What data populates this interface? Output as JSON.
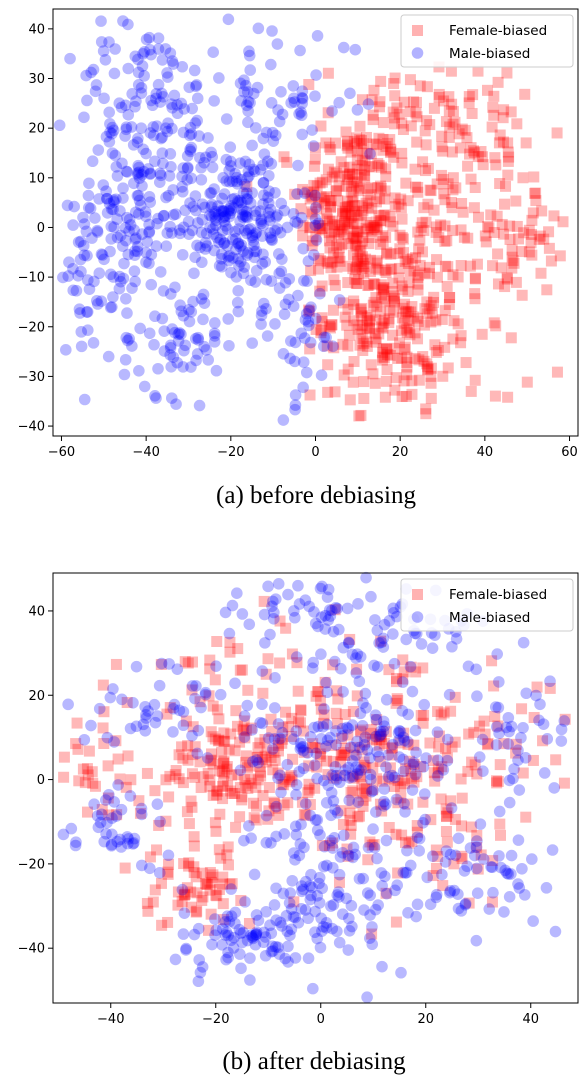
{
  "chart_data": [
    {
      "type": "scatter",
      "caption": "(a) before debiasing",
      "xlim": [
        -62,
        62
      ],
      "ylim": [
        -42,
        44
      ],
      "xticks": [
        -60,
        -40,
        -20,
        0,
        20,
        40,
        60
      ],
      "yticks": [
        -40,
        -30,
        -20,
        -10,
        0,
        10,
        20,
        30,
        40
      ],
      "grid": false,
      "legend_position": "top-right",
      "series": [
        {
          "name": "Female-biased",
          "marker": "square",
          "color": "#ff0000",
          "clusters": [
            {
              "cx": 8,
              "cy": 4,
              "sx": 6,
              "sy": 9,
              "n": 230
            },
            {
              "cx": 16,
              "cy": -17,
              "sx": 7,
              "sy": 9,
              "n": 200
            },
            {
              "cx": 30,
              "cy": 3,
              "sx": 9,
              "sy": 12,
              "n": 120
            },
            {
              "cx": 48,
              "cy": -2,
              "sx": 5,
              "sy": 6,
              "n": 55
            },
            {
              "cx": 28,
              "cy": -28,
              "sx": 10,
              "sy": 6,
              "n": 45
            },
            {
              "cx": 20,
              "cy": 22,
              "sx": 9,
              "sy": 6,
              "n": 50
            },
            {
              "cx": 40,
              "cy": 18,
              "sx": 7,
              "sy": 6,
              "n": 30
            }
          ]
        },
        {
          "name": "Male-biased",
          "marker": "circle",
          "color": "#0000ff",
          "clusters": [
            {
              "cx": -20,
              "cy": 2,
              "sx": 9,
              "sy": 7,
              "n": 260
            },
            {
              "cx": -40,
              "cy": 25,
              "sx": 9,
              "sy": 8,
              "n": 120
            },
            {
              "cx": -45,
              "cy": 4,
              "sx": 6,
              "sy": 7,
              "n": 90
            },
            {
              "cx": -32,
              "cy": -22,
              "sx": 7,
              "sy": 6,
              "n": 70
            },
            {
              "cx": -52,
              "cy": -10,
              "sx": 4,
              "sy": 6,
              "n": 40
            },
            {
              "cx": -10,
              "cy": 25,
              "sx": 10,
              "sy": 8,
              "n": 70
            },
            {
              "cx": -5,
              "cy": -20,
              "sx": 6,
              "sy": 8,
              "n": 50
            }
          ]
        }
      ]
    },
    {
      "type": "scatter",
      "caption": "(b) after debiasing",
      "xlim": [
        -51,
        49
      ],
      "ylim": [
        -53,
        49
      ],
      "xticks": [
        -40,
        -20,
        0,
        20,
        40
      ],
      "yticks": [
        -40,
        -20,
        0,
        20,
        40
      ],
      "grid": false,
      "legend_position": "top-right",
      "series": [
        {
          "name": "Female-biased",
          "marker": "square",
          "color": "#ff0000",
          "clusters": [
            {
              "cx": -18,
              "cy": 2,
              "sx": 8,
              "sy": 8,
              "n": 140
            },
            {
              "cx": 10,
              "cy": 4,
              "sx": 10,
              "sy": 9,
              "n": 150
            },
            {
              "cx": -24,
              "cy": -25,
              "sx": 5,
              "sy": 5,
              "n": 60
            },
            {
              "cx": -42,
              "cy": 2,
              "sx": 4,
              "sy": 6,
              "n": 30
            },
            {
              "cx": -6,
              "cy": 20,
              "sx": 12,
              "sy": 10,
              "n": 70
            },
            {
              "cx": 20,
              "cy": -15,
              "sx": 10,
              "sy": 8,
              "n": 50
            },
            {
              "cx": 35,
              "cy": 10,
              "sx": 6,
              "sy": 8,
              "n": 30
            }
          ]
        },
        {
          "name": "Male-biased",
          "marker": "circle",
          "color": "#0000ff",
          "clusters": [
            {
              "cx": 5,
              "cy": 5,
              "sx": 10,
              "sy": 8,
              "n": 160
            },
            {
              "cx": 0,
              "cy": -25,
              "sx": 10,
              "sy": 10,
              "n": 140
            },
            {
              "cx": -15,
              "cy": -37,
              "sx": 8,
              "sy": 5,
              "n": 60
            },
            {
              "cx": 15,
              "cy": 35,
              "sx": 10,
              "sy": 6,
              "n": 70
            },
            {
              "cx": -2,
              "cy": 40,
              "sx": 8,
              "sy": 4,
              "n": 40
            },
            {
              "cx": 30,
              "cy": -22,
              "sx": 8,
              "sy": 7,
              "n": 60
            },
            {
              "cx": -30,
              "cy": 18,
              "sx": 7,
              "sy": 6,
              "n": 45
            },
            {
              "cx": -38,
              "cy": -12,
              "sx": 5,
              "sy": 5,
              "n": 40
            },
            {
              "cx": 38,
              "cy": 10,
              "sx": 5,
              "sy": 8,
              "n": 35
            }
          ]
        }
      ]
    }
  ]
}
